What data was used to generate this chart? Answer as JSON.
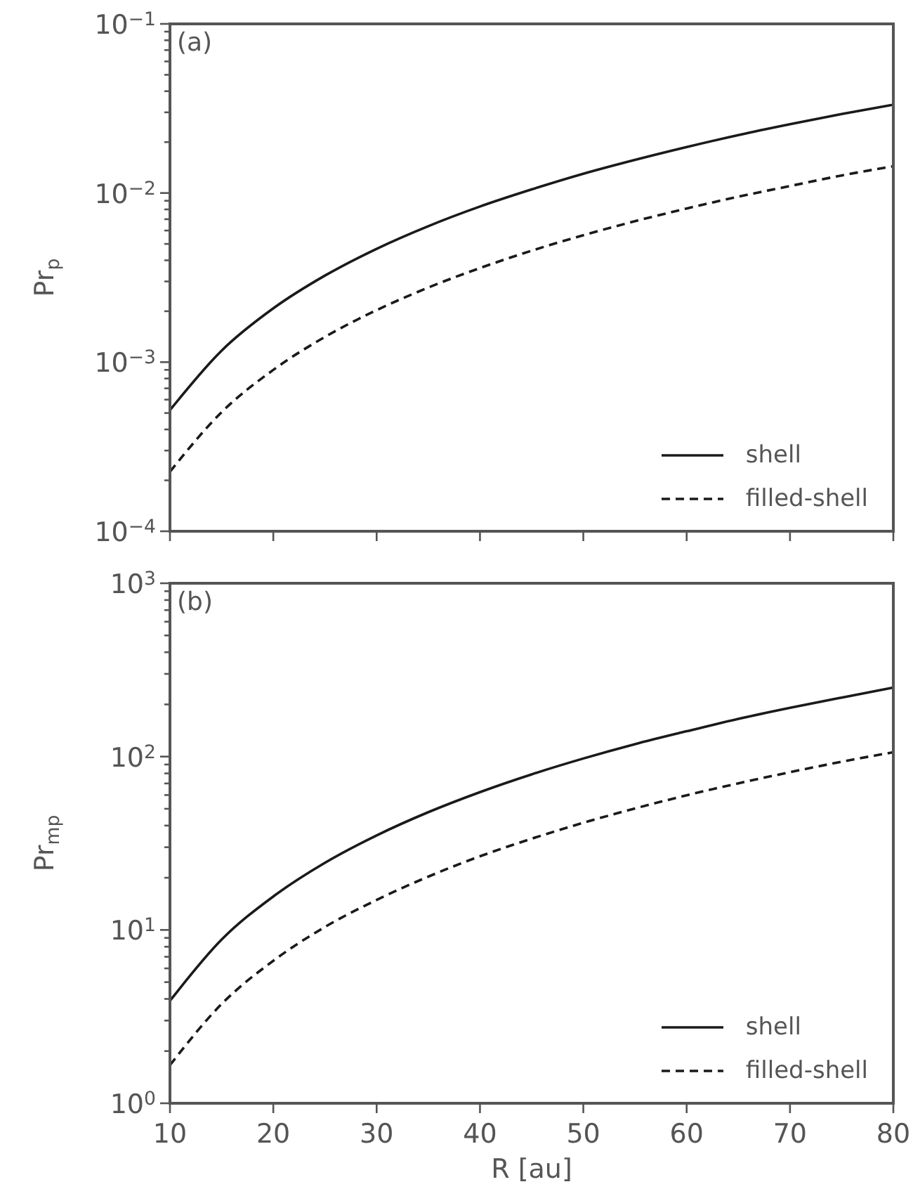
{
  "chart_data": [
    {
      "type": "line",
      "ylabel": "Pr$_{p}$",
      "annotations": [
        "(a)"
      ],
      "x": [
        10,
        15,
        20,
        25,
        30,
        35,
        40,
        45,
        50,
        55,
        60,
        65,
        70,
        75,
        80
      ],
      "xlim": [
        10,
        80
      ],
      "xticks": [
        10,
        20,
        30,
        40,
        50,
        60,
        70,
        80
      ],
      "log": "y",
      "ylim": [
        0.0001,
        0.1
      ],
      "yticks": [
        {
          "value": 0.0001,
          "label": "10$^{−4}$"
        },
        {
          "value": 0.0002,
          "label": null
        },
        {
          "value": 0.0003,
          "label": null
        },
        {
          "value": 0.0004,
          "label": null
        },
        {
          "value": 0.0005,
          "label": null
        },
        {
          "value": 0.0006,
          "label": null
        },
        {
          "value": 0.0007,
          "label": null
        },
        {
          "value": 0.0008,
          "label": null
        },
        {
          "value": 0.0009,
          "label": null
        },
        {
          "value": 0.001,
          "label": "10$^{−3}$"
        },
        {
          "value": 0.002,
          "label": null
        },
        {
          "value": 0.003,
          "label": null
        },
        {
          "value": 0.004,
          "label": null
        },
        {
          "value": 0.005,
          "label": null
        },
        {
          "value": 0.006,
          "label": null
        },
        {
          "value": 0.007,
          "label": null
        },
        {
          "value": 0.008,
          "label": null
        },
        {
          "value": 0.009,
          "label": null
        },
        {
          "value": 0.01,
          "label": "10$^{−2}$"
        },
        {
          "value": 0.02,
          "label": null
        },
        {
          "value": 0.03,
          "label": null
        },
        {
          "value": 0.04,
          "label": null
        },
        {
          "value": 0.05,
          "label": null
        },
        {
          "value": 0.06,
          "label": null
        },
        {
          "value": 0.07,
          "label": null
        },
        {
          "value": 0.08,
          "label": null
        },
        {
          "value": 0.09,
          "label": null
        },
        {
          "value": 0.1,
          "label": "10$^{−1}$"
        }
      ],
      "tick_labels": "y",
      "grid": false,
      "legend": "bottom right",
      "marker": "none",
      "series": [
        {
          "name": "shell",
          "color": "#1a1a1a",
          "line_style": "solid",
          "values": [
            0.00052,
            0.00117,
            0.00208,
            0.00325,
            0.00468,
            0.00637,
            0.00832,
            0.0105,
            0.013,
            0.0157,
            0.0187,
            0.022,
            0.0255,
            0.0293,
            0.0333
          ]
        },
        {
          "name": "filled-shell",
          "color": "#1a1a1a",
          "line_style": "dashed",
          "values": [
            0.000225,
            0.000506,
            0.0009,
            0.00141,
            0.00203,
            0.00276,
            0.0036,
            0.00456,
            0.00563,
            0.00681,
            0.0081,
            0.00951,
            0.011,
            0.0127,
            0.0144
          ]
        }
      ]
    },
    {
      "type": "line",
      "xlabel": "R [au]",
      "ylabel": "Pr$_{mp}$",
      "annotations": [
        "(b)"
      ],
      "x": [
        10,
        15,
        20,
        25,
        30,
        35,
        40,
        45,
        50,
        55,
        60,
        65,
        70,
        75,
        80
      ],
      "xlim": [
        10,
        80
      ],
      "xticks": [
        10,
        20,
        30,
        40,
        50,
        60,
        70,
        80
      ],
      "log": "y",
      "ylim": [
        1,
        1000
      ],
      "yticks": [
        {
          "value": 1,
          "label": "10$^{0}$"
        },
        {
          "value": 2,
          "label": null
        },
        {
          "value": 3,
          "label": null
        },
        {
          "value": 4,
          "label": null
        },
        {
          "value": 5,
          "label": null
        },
        {
          "value": 6,
          "label": null
        },
        {
          "value": 7,
          "label": null
        },
        {
          "value": 8,
          "label": null
        },
        {
          "value": 9,
          "label": null
        },
        {
          "value": 10,
          "label": "10$^{1}$"
        },
        {
          "value": 20,
          "label": null
        },
        {
          "value": 30,
          "label": null
        },
        {
          "value": 40,
          "label": null
        },
        {
          "value": 50,
          "label": null
        },
        {
          "value": 60,
          "label": null
        },
        {
          "value": 70,
          "label": null
        },
        {
          "value": 80,
          "label": null
        },
        {
          "value": 90,
          "label": null
        },
        {
          "value": 100,
          "label": "10$^{2}$"
        },
        {
          "value": 200,
          "label": null
        },
        {
          "value": 300,
          "label": null
        },
        {
          "value": 400,
          "label": null
        },
        {
          "value": 500,
          "label": null
        },
        {
          "value": 600,
          "label": null
        },
        {
          "value": 700,
          "label": null
        },
        {
          "value": 800,
          "label": null
        },
        {
          "value": 900,
          "label": null
        },
        {
          "value": 1000,
          "label": "10$^{3}$"
        }
      ],
      "grid": false,
      "legend": "bottom right",
      "marker": "none",
      "series": [
        {
          "name": "shell",
          "color": "#1a1a1a",
          "line_style": "solid",
          "values": [
            3.9,
            8.8,
            15.6,
            24.4,
            35.1,
            47.8,
            62.4,
            79,
            97.5,
            118,
            140,
            165,
            191,
            219,
            250
          ]
        },
        {
          "name": "filled-shell",
          "color": "#1a1a1a",
          "line_style": "dashed",
          "values": [
            1.66,
            3.74,
            6.64,
            10.4,
            14.9,
            20.3,
            26.6,
            33.6,
            41.5,
            50.2,
            59.8,
            70.1,
            81.3,
            93.4,
            106
          ]
        }
      ]
    }
  ]
}
